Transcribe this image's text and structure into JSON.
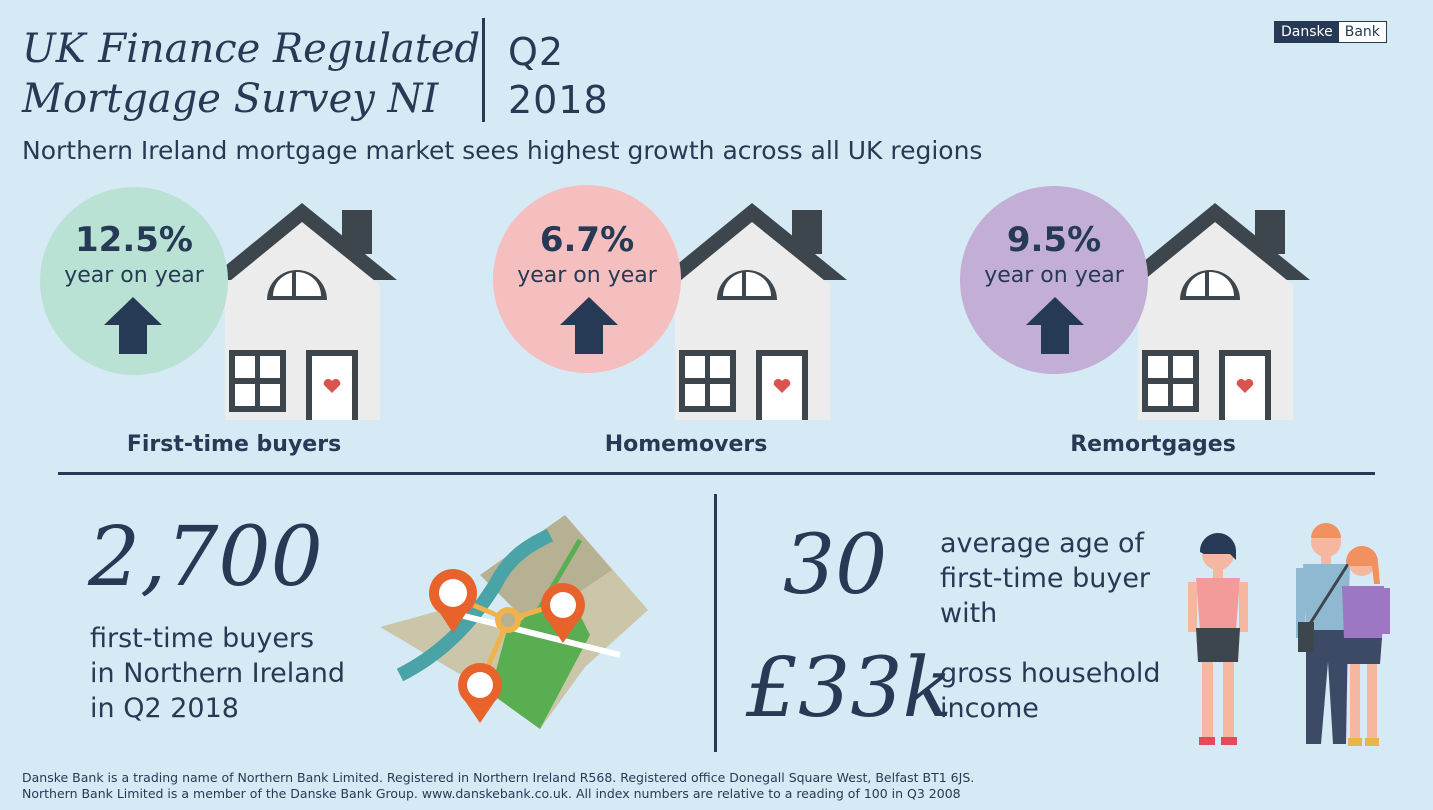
{
  "header": {
    "title_line1": "UK Finance Regulated",
    "title_line2": "Mortgage Survey NI",
    "period_line1": "Q2",
    "period_line2": "2018",
    "logo_part1": "Danske",
    "logo_part2": "Bank",
    "subtitle": "Northern Ireland mortgage market sees highest growth across all UK regions"
  },
  "categories": [
    {
      "value": "12.5%",
      "caption": "year on year",
      "label": "First-time buyers",
      "color": "#b9e2d4"
    },
    {
      "value": "6.7%",
      "caption": "year on year",
      "label": "Homemovers",
      "color": "#f6bfbf"
    },
    {
      "value": "9.5%",
      "caption": "year on year",
      "label": "Remortgages",
      "color": "#c3aed6"
    }
  ],
  "buyers": {
    "number": "2,700",
    "line1": "first-time buyers",
    "line2": "in Northern Ireland",
    "line3": "in Q2 2018"
  },
  "age": {
    "number": "30",
    "line1": "average age of",
    "line2": "first-time buyer",
    "line3": "with"
  },
  "income": {
    "number": "£33k",
    "line1": "gross household",
    "line2": "income"
  },
  "footer": {
    "line1": "Danske Bank is a trading name of Northern Bank Limited. Registered in Northern Ireland R568. Registered office Donegall Square West, Belfast BT1 6JS.",
    "line2": "Northern Bank Limited is a member of the Danske Bank Group. www.danskebank.co.uk. All index numbers are relative to a reading of 100 in Q3 2008"
  },
  "colors": {
    "background": "#d6eaf5",
    "navy": "#263a55",
    "roof": "#3d464d",
    "house_wall": "#ececec",
    "heart": "#d9534f"
  }
}
